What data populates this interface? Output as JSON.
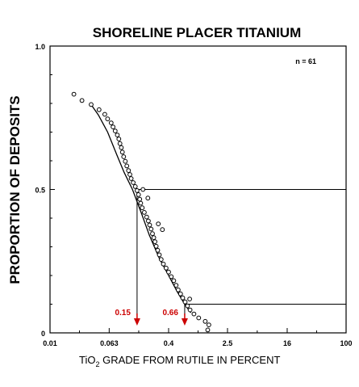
{
  "chart_data": {
    "type": "scatter",
    "title": "SHORELINE PLACER TITANIUM",
    "ylabel": "PROPORTION OF DEPOSITS",
    "xlabel_main": "TiO",
    "xlabel_subscript": "2",
    "xlabel_rest": " GRADE FROM RUTILE IN PERCENT",
    "x_scale": "log",
    "xlim": [
      0.01,
      100
    ],
    "ylim": [
      0,
      1
    ],
    "x_ticks": [
      {
        "value": 0.01,
        "label": "0.01"
      },
      {
        "value": 0.063,
        "label": "0.063"
      },
      {
        "value": 0.4,
        "label": "0.4"
      },
      {
        "value": 2.5,
        "label": "2.5"
      },
      {
        "value": 16,
        "label": "16"
      },
      {
        "value": 100,
        "label": "100"
      }
    ],
    "x_minor_ticks": [
      0.025,
      0.158,
      1.0,
      6.3,
      40
    ],
    "y_ticks": [
      {
        "value": 0,
        "label": "0"
      },
      {
        "value": 0.5,
        "label": "0.5"
      },
      {
        "value": 1.0,
        "label": "1.0"
      }
    ],
    "y_minor_ticks": [
      0.1,
      0.2,
      0.3,
      0.4,
      0.6,
      0.7,
      0.8,
      0.9
    ],
    "n_label": "n = 61",
    "grid": false,
    "points": [
      {
        "x": 0.021,
        "y": 0.832
      },
      {
        "x": 0.027,
        "y": 0.81
      },
      {
        "x": 0.036,
        "y": 0.796
      },
      {
        "x": 0.046,
        "y": 0.778
      },
      {
        "x": 0.055,
        "y": 0.762
      },
      {
        "x": 0.06,
        "y": 0.746
      },
      {
        "x": 0.067,
        "y": 0.732
      },
      {
        "x": 0.071,
        "y": 0.718
      },
      {
        "x": 0.076,
        "y": 0.704
      },
      {
        "x": 0.081,
        "y": 0.69
      },
      {
        "x": 0.085,
        "y": 0.676
      },
      {
        "x": 0.088,
        "y": 0.66
      },
      {
        "x": 0.092,
        "y": 0.646
      },
      {
        "x": 0.095,
        "y": 0.63
      },
      {
        "x": 0.099,
        "y": 0.614
      },
      {
        "x": 0.104,
        "y": 0.598
      },
      {
        "x": 0.109,
        "y": 0.582
      },
      {
        "x": 0.115,
        "y": 0.566
      },
      {
        "x": 0.12,
        "y": 0.552
      },
      {
        "x": 0.125,
        "y": 0.538
      },
      {
        "x": 0.133,
        "y": 0.524
      },
      {
        "x": 0.142,
        "y": 0.51
      },
      {
        "x": 0.15,
        "y": 0.496
      },
      {
        "x": 0.157,
        "y": 0.482
      },
      {
        "x": 0.163,
        "y": 0.466
      },
      {
        "x": 0.168,
        "y": 0.452
      },
      {
        "x": 0.176,
        "y": 0.436
      },
      {
        "x": 0.188,
        "y": 0.42
      },
      {
        "x": 0.202,
        "y": 0.404
      },
      {
        "x": 0.213,
        "y": 0.39
      },
      {
        "x": 0.222,
        "y": 0.376
      },
      {
        "x": 0.232,
        "y": 0.362
      },
      {
        "x": 0.242,
        "y": 0.346
      },
      {
        "x": 0.252,
        "y": 0.332
      },
      {
        "x": 0.262,
        "y": 0.318
      },
      {
        "x": 0.272,
        "y": 0.302
      },
      {
        "x": 0.285,
        "y": 0.288
      },
      {
        "x": 0.3,
        "y": 0.272
      },
      {
        "x": 0.318,
        "y": 0.256
      },
      {
        "x": 0.34,
        "y": 0.24
      },
      {
        "x": 0.37,
        "y": 0.226
      },
      {
        "x": 0.4,
        "y": 0.212
      },
      {
        "x": 0.435,
        "y": 0.196
      },
      {
        "x": 0.47,
        "y": 0.182
      },
      {
        "x": 0.505,
        "y": 0.166
      },
      {
        "x": 0.54,
        "y": 0.15
      },
      {
        "x": 0.58,
        "y": 0.136
      },
      {
        "x": 0.62,
        "y": 0.122
      },
      {
        "x": 0.67,
        "y": 0.108
      },
      {
        "x": 0.72,
        "y": 0.094
      },
      {
        "x": 0.78,
        "y": 0.08
      },
      {
        "x": 0.88,
        "y": 0.066
      },
      {
        "x": 1.02,
        "y": 0.052
      },
      {
        "x": 1.25,
        "y": 0.04
      },
      {
        "x": 1.4,
        "y": 0.028
      },
      {
        "x": 0.29,
        "y": 0.38
      },
      {
        "x": 0.33,
        "y": 0.36
      },
      {
        "x": 0.21,
        "y": 0.47
      },
      {
        "x": 0.18,
        "y": 0.5
      },
      {
        "x": 0.77,
        "y": 0.118
      },
      {
        "x": 1.35,
        "y": 0.01
      }
    ],
    "fit_curve": [
      {
        "x": 0.035,
        "y": 0.8
      },
      {
        "x": 0.045,
        "y": 0.76
      },
      {
        "x": 0.06,
        "y": 0.7
      },
      {
        "x": 0.08,
        "y": 0.62
      },
      {
        "x": 0.1,
        "y": 0.56
      },
      {
        "x": 0.13,
        "y": 0.5
      },
      {
        "x": 0.17,
        "y": 0.42
      },
      {
        "x": 0.22,
        "y": 0.34
      },
      {
        "x": 0.3,
        "y": 0.26
      },
      {
        "x": 0.4,
        "y": 0.2
      },
      {
        "x": 0.52,
        "y": 0.145
      },
      {
        "x": 0.66,
        "y": 0.1
      },
      {
        "x": 0.8,
        "y": 0.07
      }
    ],
    "annotations": [
      {
        "label": "0.15",
        "x": 0.15,
        "y": 0.5,
        "color": "#cc0000"
      },
      {
        "label": "0.66",
        "x": 0.66,
        "y": 0.1,
        "color": "#cc0000"
      }
    ]
  }
}
